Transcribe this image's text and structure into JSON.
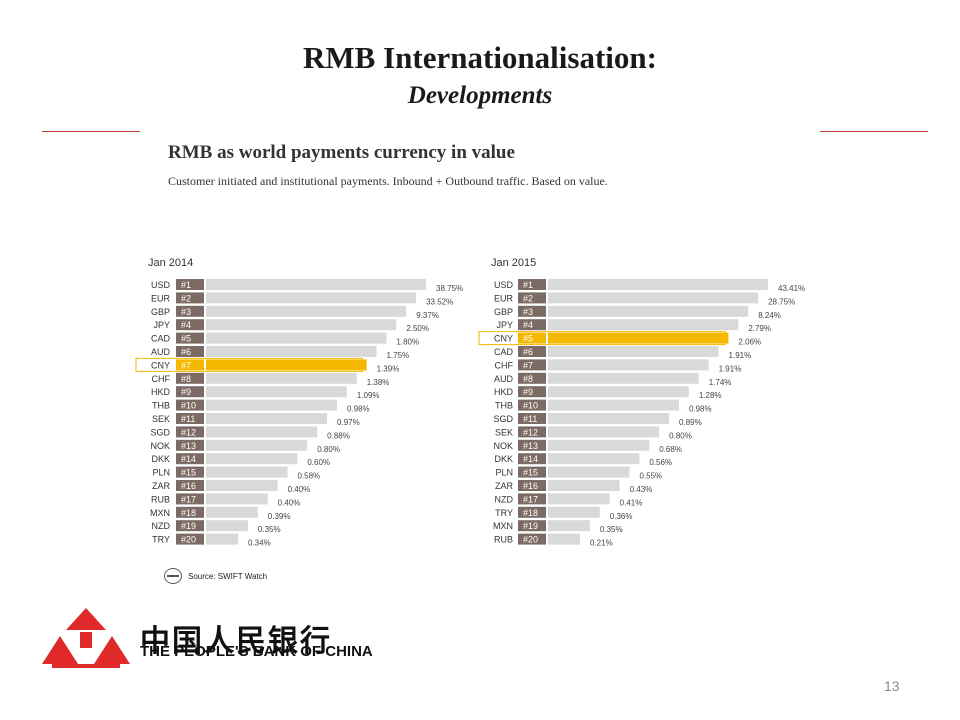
{
  "slide": {
    "title": "RMB Internationalisation:",
    "subtitle": "Developments",
    "page_number": "13"
  },
  "chart_header": {
    "title": "RMB as world payments currency in value",
    "subtitle": "Customer initiated and institutional payments. Inbound + Outbound traffic. Based on value."
  },
  "source": "Source: SWIFT Watch",
  "bank": {
    "name_cn": "中国人民银行",
    "name_en": "THE PEOPLE'S BANK OF CHINA"
  },
  "colors": {
    "bar": "#d9d9d9",
    "rank_box": "#7b6b64",
    "highlight": "#f5b800",
    "rule": "#c0392b",
    "logo": "#e02a2a"
  },
  "chart_data": [
    {
      "type": "bar",
      "title": "Jan 2014",
      "highlight": "CNY",
      "categories": [
        "USD",
        "EUR",
        "GBP",
        "JPY",
        "CAD",
        "AUD",
        "CNY",
        "CHF",
        "HKD",
        "THB",
        "SEK",
        "SGD",
        "NOK",
        "DKK",
        "PLN",
        "ZAR",
        "RUB",
        "MXN",
        "NZD",
        "TRY"
      ],
      "ranks": [
        "#1",
        "#2",
        "#3",
        "#4",
        "#5",
        "#6",
        "#7",
        "#8",
        "#9",
        "#10",
        "#11",
        "#12",
        "#13",
        "#14",
        "#15",
        "#16",
        "#17",
        "#18",
        "#19",
        "#20"
      ],
      "values": [
        38.75,
        33.52,
        9.37,
        2.5,
        1.8,
        1.75,
        1.39,
        1.38,
        1.09,
        0.98,
        0.97,
        0.88,
        0.8,
        0.6,
        0.58,
        0.4,
        0.4,
        0.39,
        0.35,
        0.34
      ],
      "labels": [
        "38.75%",
        "33.52%",
        "9.37%",
        "2.50%",
        "1.80%",
        "1.75%",
        "1.39%",
        "1.38%",
        "1.09%",
        "0.98%",
        "0.97%",
        "0.88%",
        "0.80%",
        "0.60%",
        "0.58%",
        "0.40%",
        "0.40%",
        "0.39%",
        "0.35%",
        "0.34%"
      ]
    },
    {
      "type": "bar",
      "title": "Jan 2015",
      "highlight": "CNY",
      "categories": [
        "USD",
        "EUR",
        "GBP",
        "JPY",
        "CNY",
        "CAD",
        "CHF",
        "AUD",
        "HKD",
        "THB",
        "SGD",
        "SEK",
        "NOK",
        "DKK",
        "PLN",
        "ZAR",
        "NZD",
        "TRY",
        "MXN",
        "RUB"
      ],
      "ranks": [
        "#1",
        "#2",
        "#3",
        "#4",
        "#5",
        "#6",
        "#7",
        "#8",
        "#9",
        "#10",
        "#11",
        "#12",
        "#13",
        "#14",
        "#15",
        "#16",
        "#17",
        "#18",
        "#19",
        "#20"
      ],
      "values": [
        43.41,
        28.75,
        8.24,
        2.79,
        2.06,
        1.91,
        1.91,
        1.74,
        1.28,
        0.98,
        0.89,
        0.8,
        0.68,
        0.56,
        0.55,
        0.43,
        0.41,
        0.36,
        0.35,
        0.21
      ],
      "labels": [
        "43.41%",
        "28.75%",
        "8.24%",
        "2.79%",
        "2.06%",
        "1.91%",
        "1.91%",
        "1.74%",
        "1.28%",
        "0.98%",
        "0.89%",
        "0.80%",
        "0.68%",
        "0.56%",
        "0.55%",
        "0.43%",
        "0.41%",
        "0.36%",
        "0.35%",
        "0.21%"
      ]
    }
  ]
}
